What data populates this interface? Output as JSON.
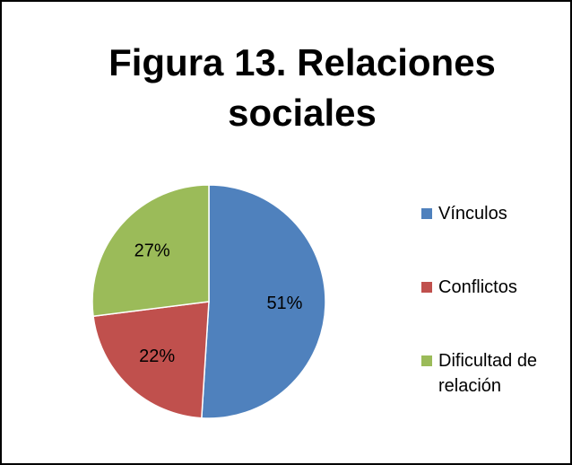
{
  "chart_data": {
    "type": "pie",
    "title": "Figura 13. Relaciones sociales",
    "categories": [
      "Vínculos",
      "Conflictos",
      "Dificultad de relación"
    ],
    "values": [
      51,
      22,
      27
    ],
    "value_labels": [
      "51%",
      "22%",
      "27%"
    ],
    "colors": [
      "#4f81bd",
      "#c0504d",
      "#9bbb59"
    ],
    "legend": "right"
  }
}
